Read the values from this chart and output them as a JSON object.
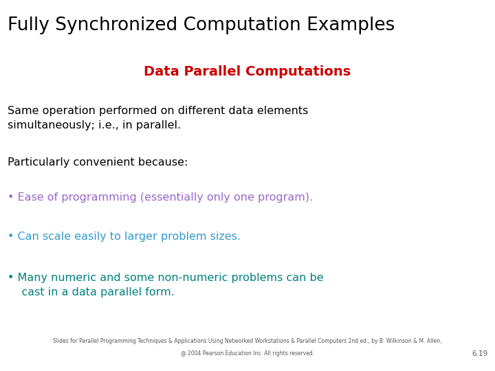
{
  "title": "Fully Synchronized Computation Examples",
  "subtitle": "Data Parallel Computations",
  "subtitle_color": "#cc0000",
  "body_text_1": "Same operation performed on different data elements\nsimultaneously; i.e., in parallel.",
  "body_text_2": "Particularly convenient because:",
  "bullet1": "• Ease of programming (essentially only one program).",
  "bullet1_color": "#9966cc",
  "bullet2": "• Can scale easily to larger problem sizes.",
  "bullet2_color": "#3399cc",
  "bullet3_line1": "• Many numeric and some non-numeric problems can be",
  "bullet3_line2": "    cast in a data parallel form.",
  "bullet3_color": "#008080",
  "footer1": "Slides for Parallel Programming Techniques & Applications Using Networked Workstations & Parallel Computers 2nd ed., by B. Wilkinson & M. Allen,",
  "footer2": "@ 2004 Pearson Education Inc. All rights reserved.",
  "page_num": "6.19",
  "bg_color": "#ffffff",
  "title_color": "#000000",
  "body_color": "#000000",
  "footer_color": "#555555",
  "title_fontsize": 19,
  "subtitle_fontsize": 14,
  "body_fontsize": 11.5,
  "bullet_fontsize": 11.5,
  "footer_fontsize": 5.5
}
